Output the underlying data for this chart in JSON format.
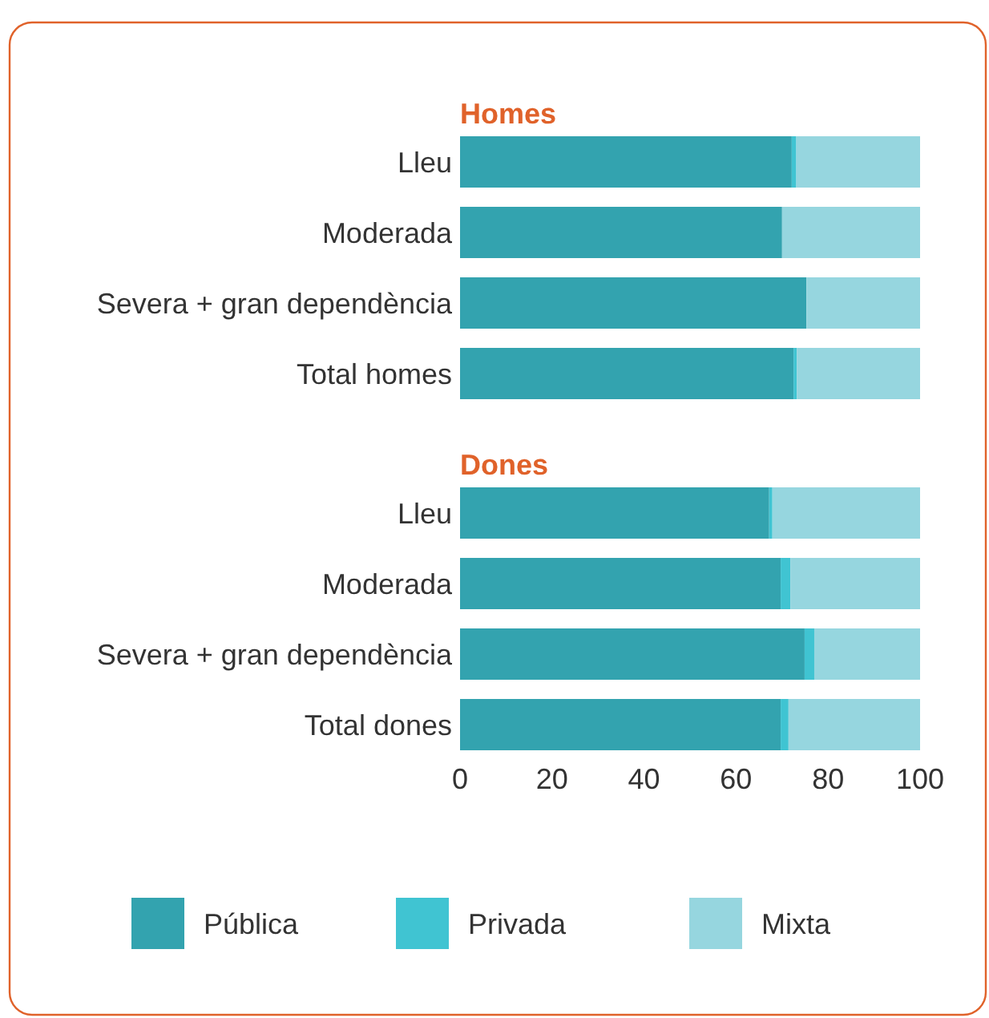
{
  "chart_data": [
    {
      "type": "bar",
      "orientation": "horizontal",
      "stacked": true,
      "title": "Homes",
      "categories": [
        "Lleu",
        "Moderada",
        "Severa + gran dependència",
        "Total homes"
      ],
      "xlim": [
        0,
        100
      ],
      "tick_labels": "y",
      "legend": false,
      "series": [
        {
          "color": "#33a3af",
          "values": [
            72.1,
            70.0,
            75.3,
            72.5
          ]
        },
        {
          "color": "#40c4d2",
          "values": [
            1.0,
            0,
            0,
            0.7
          ]
        },
        {
          "color": "#96d6df",
          "values": [
            26.9,
            30.0,
            24.7,
            26.8
          ]
        }
      ]
    },
    {
      "type": "bar",
      "orientation": "horizontal",
      "stacked": true,
      "title": "Dones",
      "categories": [
        "Lleu",
        "Moderada",
        "Severa + gran dependència",
        "Total dones"
      ],
      "xlim": [
        0,
        100
      ],
      "xticks": [
        0,
        20,
        40,
        60,
        80,
        100
      ],
      "legend": "bottom",
      "series": [
        {
          "name": "Pública",
          "color": "#33a3af",
          "values": [
            67.2,
            69.7,
            74.9,
            69.7
          ]
        },
        {
          "name": "Privada",
          "color": "#40c4d2",
          "values": [
            0.7,
            2.1,
            2.1,
            1.7
          ]
        },
        {
          "name": "Mixta",
          "color": "#96d6df",
          "values": [
            32.1,
            28.2,
            23.0,
            28.6
          ]
        }
      ]
    }
  ]
}
